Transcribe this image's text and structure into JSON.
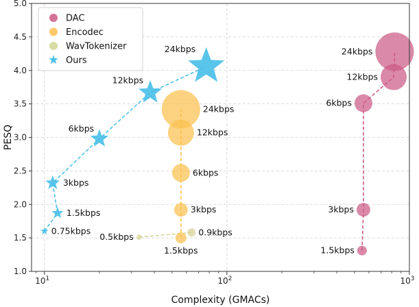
{
  "chart_data": {
    "type": "scatter",
    "xlabel": "Complexity (GMACs)",
    "ylabel": "PESQ",
    "xscale": "log",
    "xlim": [
      8.5,
      1000
    ],
    "ylim": [
      1.0,
      5.0
    ],
    "yticks": [
      "1.0",
      "1.5",
      "2.0",
      "2.5",
      "3.0",
      "3.5",
      "4.0",
      "4.5",
      "5.0"
    ],
    "xticks": [
      {
        "value": 10,
        "base": "10",
        "exp": "1"
      },
      {
        "value": 100,
        "base": "10",
        "exp": "2"
      },
      {
        "value": 1000,
        "base": "10",
        "exp": "3"
      }
    ],
    "grid": true,
    "legend_position": "top-left",
    "series": [
      {
        "name": "DAC",
        "color": "#cc5b86",
        "marker": "circle",
        "connect": "dashed",
        "points": [
          {
            "x": 550,
            "y": 1.31,
            "size": 7,
            "label": "1.5kbps",
            "label_side": "left"
          },
          {
            "x": 560,
            "y": 1.92,
            "size": 10,
            "label": "3kbps",
            "label_side": "left"
          },
          {
            "x": 560,
            "y": 3.51,
            "size": 13,
            "label": "6kbps",
            "label_side": "left"
          },
          {
            "x": 820,
            "y": 3.9,
            "size": 19,
            "label": "12kbps",
            "label_side": "left"
          },
          {
            "x": 830,
            "y": 4.28,
            "size": 28,
            "label": "24kbps",
            "label_side": "left"
          }
        ]
      },
      {
        "name": "Encodec",
        "color": "#fbc04f",
        "marker": "circle",
        "connect": "dashed",
        "points": [
          {
            "x": 56,
            "y": 1.5,
            "size": 8,
            "label": "1.5kbps",
            "label_side": "below"
          },
          {
            "x": 56,
            "y": 1.92,
            "size": 10,
            "label": "3kbps",
            "label_side": "right"
          },
          {
            "x": 56,
            "y": 2.47,
            "size": 13,
            "label": "6kbps",
            "label_side": "right"
          },
          {
            "x": 56,
            "y": 3.07,
            "size": 19,
            "label": "12kbps",
            "label_side": "right"
          },
          {
            "x": 56,
            "y": 3.42,
            "size": 28,
            "label": "24kbps",
            "label_side": "right"
          }
        ]
      },
      {
        "name": "WavTokenizer",
        "color": "#d4d696",
        "marker": "circle",
        "connect": "dashed",
        "points": [
          {
            "x": 33,
            "y": 1.51,
            "size": 4,
            "label": "0.5kbps",
            "label_side": "left"
          },
          {
            "x": 64,
            "y": 1.58,
            "size": 6,
            "label": "0.9kbps",
            "label_side": "right"
          }
        ]
      },
      {
        "name": "Ours",
        "color": "#4cc0e8",
        "marker": "star",
        "connect": "dashed",
        "points": [
          {
            "x": 10.0,
            "y": 1.6,
            "size": 6,
            "label": "0.75kbps",
            "label_side": "right"
          },
          {
            "x": 11.8,
            "y": 1.87,
            "size": 9,
            "label": "1.5kbps",
            "label_side": "right"
          },
          {
            "x": 11.1,
            "y": 2.32,
            "size": 11,
            "label": "3kbps",
            "label_side": "right"
          },
          {
            "x": 20,
            "y": 2.98,
            "size": 14,
            "label": "6kbps",
            "label_side": "upleft"
          },
          {
            "x": 38,
            "y": 3.67,
            "size": 18,
            "label": "12kbps",
            "label_side": "upleft"
          },
          {
            "x": 77,
            "y": 4.06,
            "size": 28,
            "label": "24kbps",
            "label_side": "upleft"
          }
        ]
      }
    ]
  }
}
